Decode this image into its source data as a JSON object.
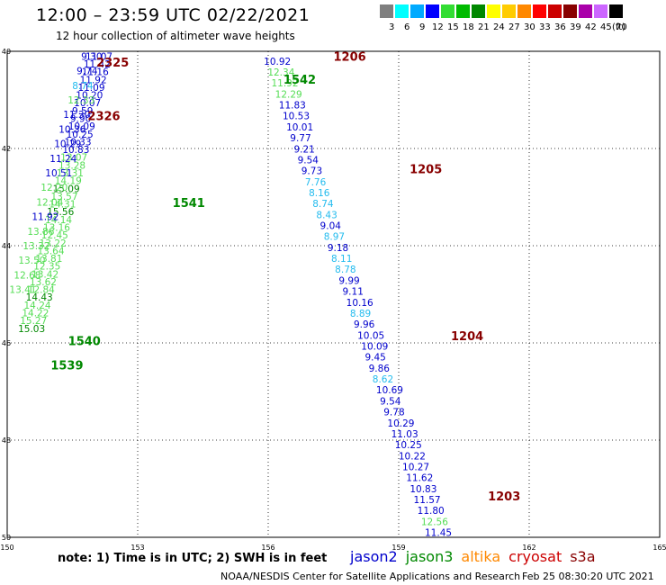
{
  "header": {
    "title": "12:00 – 23:59 UTC 02/22/2021",
    "subtitle": "12 hour collection of altimeter wave heights"
  },
  "legend": {
    "unit": "(ft)",
    "bins": [
      {
        "label": "3",
        "color": "#7f7f7f"
      },
      {
        "label": "6",
        "color": "#00ffff"
      },
      {
        "label": "9",
        "color": "#00aaff"
      },
      {
        "label": "12",
        "color": "#0000ff"
      },
      {
        "label": "15",
        "color": "#33dd33"
      },
      {
        "label": "18",
        "color": "#00bb00"
      },
      {
        "label": "21",
        "color": "#008800"
      },
      {
        "label": "24",
        "color": "#ffff00"
      },
      {
        "label": "27",
        "color": "#ffcc00"
      },
      {
        "label": "30",
        "color": "#ff8800"
      },
      {
        "label": "33",
        "color": "#ff0000"
      },
      {
        "label": "36",
        "color": "#cc0000"
      },
      {
        "label": "39",
        "color": "#880000"
      },
      {
        "label": "42",
        "color": "#aa00aa"
      },
      {
        "label": "45",
        "color": "#cc66ff"
      },
      {
        "label": "70",
        "color": "#000000"
      }
    ]
  },
  "map": {
    "lon_ticks": [
      "150",
      "153",
      "156",
      "159",
      "162",
      "165"
    ],
    "lat_ticks": [
      "40",
      "42",
      "44",
      "46",
      "48",
      "50"
    ],
    "lon_range": [
      150,
      165
    ],
    "lat_range": [
      40,
      50
    ]
  },
  "colors": {
    "jason2": "#0000cc",
    "jason3": "#008800",
    "jason3_light": "#55dd55",
    "cyan": "#22bbee",
    "time_label": "#880000",
    "altika": "#ff8800",
    "cryosat": "#cc0000",
    "s3a": "#880000"
  },
  "tracks": [
    {
      "id": "west",
      "lon0": 150.25,
      "lon1": 151.8,
      "lat0": 45.7,
      "lat1": 40.1,
      "values": [
        "15.03",
        "15.27",
        "14.22",
        "14.24",
        "14.43",
        "12.84",
        "13.62",
        "13.42",
        "12.35",
        "13.81",
        "13.64",
        "13.22",
        "12.45",
        "13.16",
        "14.14",
        "15.56",
        "14.31",
        "13.57",
        "15.09",
        "14.19",
        "13.31",
        "13.28",
        "13.07",
        "10.83",
        "10.33",
        "10.25",
        "10.09",
        "9.90",
        "9.59",
        "10.07",
        "10.20",
        "11.09",
        "11.92",
        "11.16",
        "11.42",
        "11.07"
      ],
      "colors": [
        "j3",
        "j3l",
        "j3l",
        "j3l",
        "j3",
        "j3l",
        "j3l",
        "j3l",
        "j3l",
        "j3l",
        "j3l",
        "j3l",
        "j3l",
        "j3l",
        "j3l",
        "j3",
        "j3l",
        "j3l",
        "j3",
        "j3l",
        "j3l",
        "j3l",
        "j3l",
        "j2",
        "j2",
        "j2",
        "j2",
        "j2",
        "j2",
        "j2",
        "j2",
        "j2",
        "j2",
        "j2",
        "j2",
        "j2"
      ]
    },
    {
      "id": "far-west",
      "lon0": 150.05,
      "lon1": 151.7,
      "lat0": 44.9,
      "lat1": 40.1,
      "values": [
        "13.41",
        "12.68",
        "13.50",
        "13.32",
        "13.86",
        "11.92",
        "12.04",
        "12.20",
        "10.51",
        "11.24",
        "10.29",
        "10.36",
        "11.30",
        "12.33",
        "8.74",
        "9.74",
        "9.30"
      ],
      "colors": [
        "j3l",
        "j3l",
        "j3l",
        "j3l",
        "j3l",
        "j2",
        "j3l",
        "j3l",
        "j2",
        "j2",
        "j2",
        "j2",
        "j2",
        "j3l",
        "cy",
        "j2",
        "j2"
      ]
    },
    {
      "id": "east",
      "lon0": 155.9,
      "lon1": 159.6,
      "lat0": 40.2,
      "lat1": 49.9,
      "values": [
        "10.92",
        "12.34",
        "11.92",
        "12.29",
        "11.83",
        "10.53",
        "10.01",
        "9.77",
        "9.21",
        "9.54",
        "9.73",
        "7.76",
        "8.16",
        "8.74",
        "8.43",
        "9.04",
        "8.97",
        "9.18",
        "8.11",
        "8.78",
        "9.99",
        "9.11",
        "10.16",
        "8.89",
        "9.96",
        "10.05",
        "10.09",
        "9.45",
        "9.86",
        "8.62",
        "10.69",
        "9.54",
        "9.78",
        "10.29",
        "11.03",
        "10.25",
        "10.22",
        "10.27",
        "11.62",
        "10.83",
        "11.57",
        "11.80",
        "12.56",
        "11.45"
      ],
      "colors": [
        "j2",
        "j3l",
        "j3l",
        "j3l",
        "j2",
        "j2",
        "j2",
        "j2",
        "j2",
        "j2",
        "j2",
        "cy",
        "cy",
        "cy",
        "cy",
        "j2",
        "cy",
        "j2",
        "cy",
        "cy",
        "j2",
        "j2",
        "j2",
        "cy",
        "j2",
        "j2",
        "j2",
        "j2",
        "j2",
        "cy",
        "j2",
        "j2",
        "j2",
        "j2",
        "j2",
        "j2",
        "j2",
        "j2",
        "j2",
        "j2",
        "j2",
        "j2",
        "j3l",
        "j2"
      ]
    }
  ],
  "time_labels": [
    {
      "text": "2325",
      "lon": 152.05,
      "lat": 40.22,
      "color": "tl"
    },
    {
      "text": "2326",
      "lon": 151.85,
      "lat": 41.32,
      "color": "tl"
    },
    {
      "text": "1541",
      "lon": 153.8,
      "lat": 43.11,
      "color": "j3"
    },
    {
      "text": "1540",
      "lon": 151.4,
      "lat": 45.95,
      "color": "j3"
    },
    {
      "text": "1539",
      "lon": 151.0,
      "lat": 46.45,
      "color": "j3"
    },
    {
      "text": "1206",
      "lon": 157.5,
      "lat": 40.1,
      "color": "tl"
    },
    {
      "text": "1542",
      "lon": 156.35,
      "lat": 40.57,
      "color": "j3"
    },
    {
      "text": "1205",
      "lon": 159.25,
      "lat": 42.42,
      "color": "tl"
    },
    {
      "text": "1204",
      "lon": 160.2,
      "lat": 45.85,
      "color": "tl"
    },
    {
      "text": "1203",
      "lon": 161.05,
      "lat": 49.15,
      "color": "tl"
    }
  ],
  "footer": {
    "note": "note:  1) Time is in UTC;  2) SWH is in feet",
    "satellites": [
      {
        "name": "jason2",
        "color": "#0000cc"
      },
      {
        "name": "jason3",
        "color": "#008800"
      },
      {
        "name": "altika",
        "color": "#ff8800"
      },
      {
        "name": "cryosat",
        "color": "#cc0000"
      },
      {
        "name": "s3a",
        "color": "#880000"
      }
    ],
    "credit": "NOAA/NESDIS Center for Satellite Applications and Research",
    "timestamp": "Feb 25 08:30:20 UTC 2021"
  }
}
